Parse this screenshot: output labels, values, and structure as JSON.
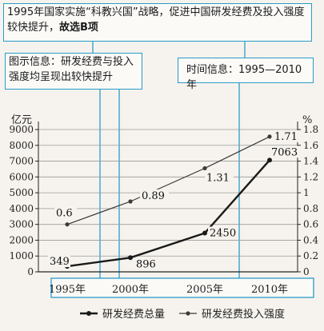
{
  "annotations": {
    "top": {
      "text": "1995年国家实施“科教兴国”战略，促进中国研发经费及投入强度较快提升，",
      "bold": "故选B项"
    },
    "left": {
      "text": "图示信息：研发经费与投入强度均呈现出较快提升"
    },
    "right": {
      "text": "时间信息：1995—2010年"
    }
  },
  "chart_data": {
    "type": "line",
    "categories": [
      "1995年",
      "2000年",
      "2005年",
      "2010年"
    ],
    "left_axis": {
      "label": "亿元",
      "ticks": [
        0,
        1000,
        2000,
        3000,
        4000,
        5000,
        6000,
        7000,
        8000,
        9000
      ],
      "ylim": [
        0,
        9000
      ]
    },
    "right_axis": {
      "label": "%",
      "ticks": [
        "0",
        "0.2",
        "0.4",
        "0.6",
        "0.8",
        "1",
        "1.2",
        "1.4",
        "1.6",
        "1.8"
      ],
      "ylim": [
        0,
        1.8
      ]
    },
    "grid": true,
    "series": [
      {
        "name": "研发经费总量",
        "axis": "left",
        "values": [
          349,
          896,
          2450,
          7063
        ],
        "labels": [
          "349",
          "896",
          "2450",
          "7063"
        ],
        "color": "#1a1a1a"
      },
      {
        "name": "研发经费投入强度",
        "axis": "right",
        "values": [
          0.6,
          0.89,
          1.31,
          1.71
        ],
        "labels": [
          "0.6",
          "0.89",
          "1.31",
          "1.71"
        ],
        "color": "#3a3a3a"
      }
    ],
    "legend_placement": "bottom"
  }
}
